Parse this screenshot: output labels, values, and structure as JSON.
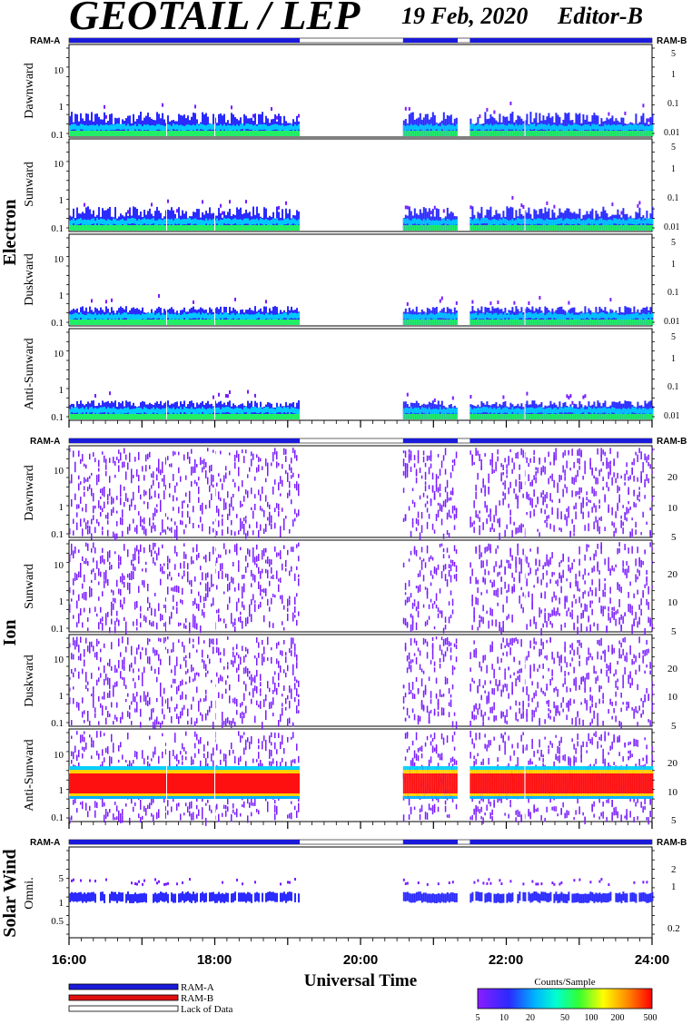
{
  "header": {
    "title": "GEOTAIL / LEP",
    "date": "19 Feb, 2020",
    "editor": "Editor-B"
  },
  "ram_labels": {
    "left": "RAM-A",
    "right": "RAM-B"
  },
  "groups": [
    {
      "label": "Electron",
      "panels": [
        "Dawnward",
        "Sunward",
        "Duskward",
        "Anti-Sunward"
      ]
    },
    {
      "label": "Ion",
      "panels": [
        "Dawnward",
        "Sunward",
        "Duskward",
        "Anti-Sunward"
      ]
    },
    {
      "label": "Solar Wind",
      "panels": [
        "Omni."
      ]
    }
  ],
  "axes": {
    "xlabel": "Universal Time",
    "x_ticks": [
      "16:00",
      "18:00",
      "20:00",
      "22:00",
      "24:00"
    ],
    "electron_left_ticks": [
      "10",
      "1",
      "0.1"
    ],
    "electron_right_ticks": [
      "5",
      "1",
      "0.1",
      "0.01"
    ],
    "ion_left_ticks": [
      "10",
      "1",
      "0.1"
    ],
    "ion_right_ticks": [
      "20",
      "10",
      "5"
    ],
    "sw_left_ticks": [
      "5",
      "1",
      "0.5"
    ],
    "sw_right_ticks": [
      "2",
      "1",
      "0.2"
    ]
  },
  "legend": {
    "items": [
      {
        "label": "RAM-A",
        "color": "#1a1adb"
      },
      {
        "label": "RAM-B",
        "color": "#e01010"
      },
      {
        "label": "Lack of Data",
        "color": "#ffffff"
      }
    ]
  },
  "colorbar": {
    "title": "Counts/Sample",
    "ticks": [
      "5",
      "10",
      "20",
      "50",
      "100",
      "200",
      "500"
    ]
  },
  "chart_data": {
    "type": "heatmap",
    "title": "GEOTAIL / LEP",
    "xlabel": "Universal Time",
    "x_range": [
      "16:00",
      "24:00"
    ],
    "data_intervals_UT": [
      [
        "16:00",
        "19:10"
      ],
      [
        "20:35",
        "21:20"
      ],
      [
        "21:30",
        "24:00"
      ]
    ],
    "ram_a_intervals_UT": [
      [
        "16:00",
        "19:10"
      ],
      [
        "20:35",
        "21:20"
      ],
      [
        "21:30",
        "24:00"
      ]
    ],
    "colorbar_range": [
      5,
      500
    ],
    "colorbar_scale": "log"
  }
}
